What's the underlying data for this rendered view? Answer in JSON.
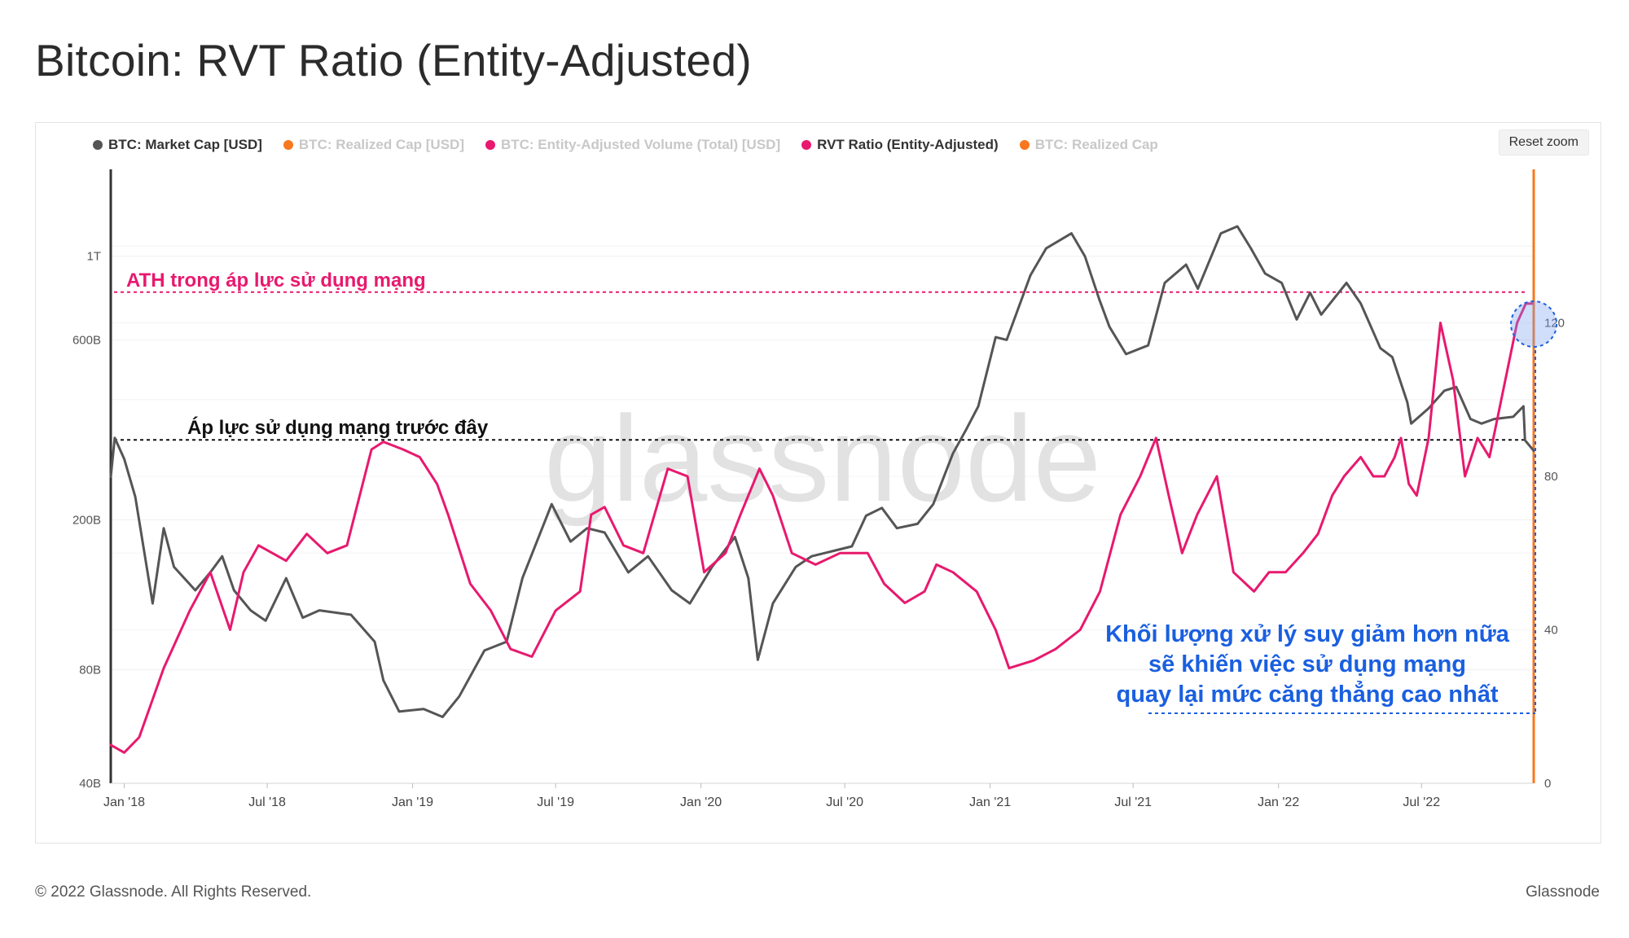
{
  "page_title": "Bitcoin: RVT Ratio (Entity-Adjusted)",
  "reset_zoom_label": "Reset zoom",
  "footer": {
    "copyright": "© 2022 Glassnode. All Rights Reserved.",
    "brand": "Glassnode"
  },
  "watermark": "glassnode",
  "legend": [
    {
      "label": "BTC: Market Cap [USD]",
      "color": "#555555",
      "active": true
    },
    {
      "label": "BTC: Realized Cap [USD]",
      "color": "#f7781e",
      "active": false
    },
    {
      "label": "BTC: Entity-Adjusted Volume (Total) [USD]",
      "color": "#e8196e",
      "active": false
    },
    {
      "label": "RVT Ratio (Entity-Adjusted)",
      "color": "#e8196e",
      "active": true
    },
    {
      "label": "BTC: Realized Cap",
      "color": "#f7781e",
      "active": false
    }
  ],
  "annotations": {
    "ath_label": "ATH trong áp lực sử dụng mạng",
    "previous_label": "Áp lực sử dụng mạng trước đây",
    "note_lines": [
      "Khối lượng xử lý suy giảm hơn nữa",
      "sẽ khiến việc sử dụng mạng",
      "quay lại mức căng thẳng cao nhất"
    ]
  },
  "chart_data": {
    "type": "line",
    "x_ticks": [
      "Jan '18",
      "Jul '18",
      "Jan '19",
      "Jul '19",
      "Jan '20",
      "Jul '20",
      "Jan '21",
      "Jul '21",
      "Jan '22",
      "Jul '22"
    ],
    "x_range": [
      "2017-12-15",
      "2022-11-20"
    ],
    "left_axis": {
      "label": "",
      "scale": "log",
      "ticks": [
        "40B",
        "80B",
        "200B",
        "600B",
        "1T"
      ],
      "ylim": [
        40,
        1700
      ]
    },
    "right_axis": {
      "label": "",
      "ticks": [
        "0",
        "40",
        "80",
        "120"
      ],
      "ylim": [
        0,
        160
      ]
    },
    "reference_lines": [
      {
        "label": "ATH trong áp lực sử dụng mạng",
        "axis": "right",
        "value": 128,
        "color": "#e8196e"
      },
      {
        "label": "Áp lực sử dụng mạng trước đây",
        "axis": "right",
        "value": 89.5,
        "color": "#111111"
      }
    ],
    "series": [
      {
        "name": "BTC: Market Cap [USD]",
        "axis": "left",
        "color": "#555555",
        "x": [
          "2017-12-15",
          "2017-12-20",
          "2018-01-01",
          "2018-01-15",
          "2018-02-06",
          "2018-02-20",
          "2018-03-05",
          "2018-04-01",
          "2018-04-20",
          "2018-05-05",
          "2018-05-20",
          "2018-06-10",
          "2018-06-29",
          "2018-07-25",
          "2018-08-15",
          "2018-09-05",
          "2018-10-15",
          "2018-11-14",
          "2018-11-25",
          "2018-12-15",
          "2019-01-15",
          "2019-02-08",
          "2019-03-01",
          "2019-04-02",
          "2019-04-30",
          "2019-05-20",
          "2019-06-26",
          "2019-07-20",
          "2019-08-10",
          "2019-09-01",
          "2019-10-01",
          "2019-10-26",
          "2019-11-25",
          "2019-12-18",
          "2020-01-15",
          "2020-02-13",
          "2020-03-01",
          "2020-03-13",
          "2020-04-01",
          "2020-04-30",
          "2020-05-20",
          "2020-06-15",
          "2020-07-10",
          "2020-07-28",
          "2020-08-17",
          "2020-09-05",
          "2020-10-01",
          "2020-10-21",
          "2020-11-15",
          "2020-12-01",
          "2020-12-17",
          "2021-01-08",
          "2021-01-22",
          "2021-02-21",
          "2021-03-13",
          "2021-04-14",
          "2021-05-01",
          "2021-05-19",
          "2021-06-01",
          "2021-06-22",
          "2021-07-20",
          "2021-08-10",
          "2021-09-06",
          "2021-09-21",
          "2021-10-20",
          "2021-11-10",
          "2021-11-27",
          "2021-12-15",
          "2022-01-05",
          "2022-01-24",
          "2022-02-10",
          "2022-02-24",
          "2022-03-28",
          "2022-04-15",
          "2022-05-10",
          "2022-05-25",
          "2022-06-13",
          "2022-06-18",
          "2022-07-10",
          "2022-07-30",
          "2022-08-14",
          "2022-09-01",
          "2022-09-15",
          "2022-10-01",
          "2022-10-25",
          "2022-11-07",
          "2022-11-09",
          "2022-11-20"
        ],
        "values": [
          260,
          330,
          290,
          230,
          120,
          190,
          150,
          130,
          145,
          160,
          130,
          115,
          108,
          140,
          110,
          115,
          112,
          95,
          75,
          62,
          63,
          60,
          68,
          90,
          95,
          140,
          220,
          175,
          190,
          185,
          145,
          160,
          130,
          120,
          150,
          180,
          140,
          85,
          120,
          150,
          160,
          165,
          170,
          205,
          215,
          190,
          195,
          220,
          300,
          345,
          400,
          610,
          600,
          890,
          1050,
          1150,
          1000,
          770,
          650,
          550,
          580,
          850,
          950,
          820,
          1150,
          1200,
          1050,
          900,
          850,
          680,
          800,
          700,
          850,
          750,
          570,
          540,
          410,
          360,
          395,
          440,
          450,
          370,
          360,
          370,
          375,
          400,
          325,
          305
        ]
      },
      {
        "name": "RVT Ratio (Entity-Adjusted)",
        "axis": "right",
        "color": "#e8196e",
        "x": [
          "2017-12-15",
          "2018-01-01",
          "2018-01-20",
          "2018-02-20",
          "2018-03-25",
          "2018-04-20",
          "2018-05-15",
          "2018-06-01",
          "2018-06-20",
          "2018-07-25",
          "2018-08-20",
          "2018-09-15",
          "2018-10-10",
          "2018-11-10",
          "2018-11-25",
          "2018-12-20",
          "2019-01-10",
          "2019-02-01",
          "2019-02-15",
          "2019-03-15",
          "2019-04-10",
          "2019-05-05",
          "2019-06-01",
          "2019-07-01",
          "2019-08-01",
          "2019-08-15",
          "2019-09-01",
          "2019-09-25",
          "2019-10-20",
          "2019-11-20",
          "2019-12-15",
          "2020-01-05",
          "2020-02-01",
          "2020-02-20",
          "2020-03-15",
          "2020-04-01",
          "2020-04-25",
          "2020-05-25",
          "2020-06-25",
          "2020-07-30",
          "2020-08-20",
          "2020-09-15",
          "2020-10-10",
          "2020-10-25",
          "2020-11-15",
          "2020-12-15",
          "2021-01-08",
          "2021-01-25",
          "2021-02-25",
          "2021-03-25",
          "2021-04-25",
          "2021-05-20",
          "2021-06-15",
          "2021-07-10",
          "2021-07-30",
          "2021-08-15",
          "2021-09-01",
          "2021-09-20",
          "2021-10-15",
          "2021-11-05",
          "2021-12-01",
          "2021-12-20",
          "2022-01-10",
          "2022-02-01",
          "2022-02-20",
          "2022-03-10",
          "2022-03-25",
          "2022-04-15",
          "2022-05-01",
          "2022-05-15",
          "2022-05-28",
          "2022-06-05",
          "2022-06-15",
          "2022-06-25",
          "2022-07-10",
          "2022-07-25",
          "2022-08-10",
          "2022-08-25",
          "2022-09-10",
          "2022-09-25",
          "2022-10-10",
          "2022-10-30",
          "2022-11-10",
          "2022-11-18"
        ],
        "values": [
          10,
          8,
          12,
          30,
          45,
          55,
          40,
          55,
          62,
          58,
          65,
          60,
          62,
          87,
          89,
          87,
          85,
          78,
          70,
          52,
          45,
          35,
          33,
          45,
          50,
          70,
          72,
          62,
          60,
          82,
          80,
          55,
          60,
          70,
          82,
          75,
          60,
          57,
          60,
          60,
          52,
          47,
          50,
          57,
          55,
          50,
          40,
          30,
          32,
          35,
          40,
          50,
          70,
          80,
          90,
          75,
          60,
          70,
          80,
          55,
          50,
          55,
          55,
          60,
          65,
          75,
          80,
          85,
          80,
          80,
          85,
          90,
          78,
          75,
          90,
          120,
          105,
          80,
          90,
          85,
          100,
          120,
          125,
          125
        ]
      }
    ]
  }
}
